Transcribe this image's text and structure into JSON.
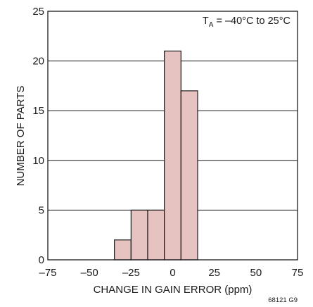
{
  "chart_data": {
    "type": "bar",
    "xlabel": "CHANGE IN GAIN ERROR (ppm)",
    "ylabel": "NUMBER OF PARTS",
    "xlim": [
      -75,
      75
    ],
    "ylim": [
      0,
      25
    ],
    "x_ticks": [
      "–75",
      "–50",
      "–25",
      "0",
      "25",
      "50",
      "75"
    ],
    "y_ticks": [
      "0",
      "5",
      "10",
      "15",
      "20",
      "25"
    ],
    "grid": "horizontal",
    "bin_width": 10,
    "bins": [
      {
        "from": -35,
        "to": -25,
        "count": 2
      },
      {
        "from": -25,
        "to": -15,
        "count": 5
      },
      {
        "from": -15,
        "to": -5,
        "count": 5
      },
      {
        "from": -5,
        "to": 5,
        "count": 21
      },
      {
        "from": 5,
        "to": 15,
        "count": 17
      }
    ],
    "bar_color": "#e6c3c0",
    "annotation": {
      "prefix": "T",
      "subscript": "A",
      "text": " = –40°C to 25°C",
      "placement": "top-right"
    },
    "figure_id": "68121 G9"
  }
}
